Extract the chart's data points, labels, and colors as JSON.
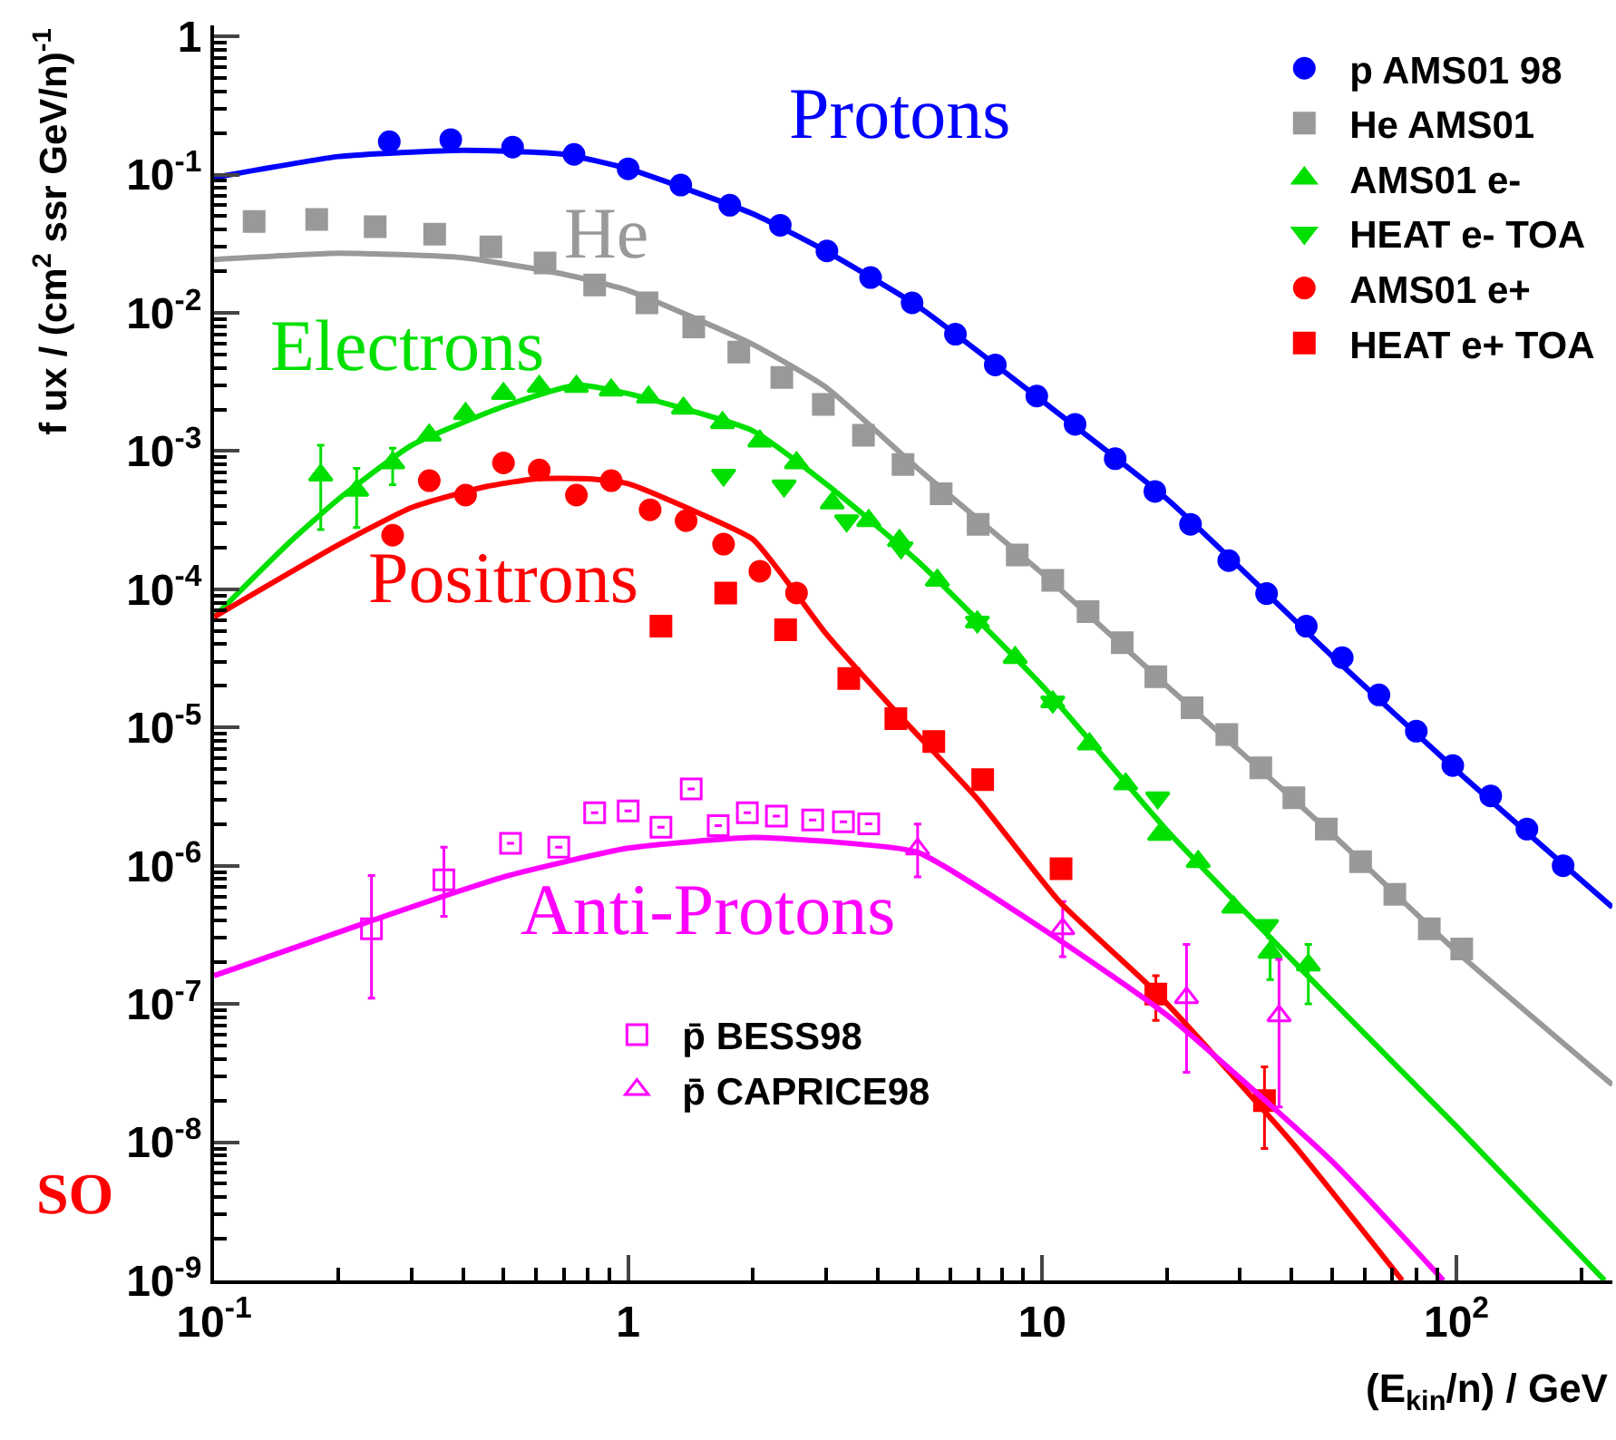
{
  "chart_data": {
    "type": "scatter",
    "log": "xy",
    "legend": "top right",
    "xlabel": "(E$_{kin}$/n) / GeV",
    "ylabel": "f ux / (cm$^{2}$ ssr GeV/n)$^{-1}$",
    "annotations": [
      "SO"
    ],
    "xlim": [
      0.1,
      238
    ],
    "ylim": [
      1e-09,
      1.2
    ],
    "xticks": [
      {
        "value": 0.1,
        "label": "10$^{-1}$"
      },
      1,
      10,
      {
        "value": 100,
        "label": "10$^{2}$"
      }
    ],
    "yticks": [
      {
        "value": 1e-09,
        "label": "10$^{-9}$"
      },
      {
        "value": 1e-08,
        "label": "10$^{-8}$"
      },
      {
        "value": 1e-07,
        "label": "10$^{-7}$"
      },
      {
        "value": 1e-06,
        "label": "10$^{-6}$"
      },
      {
        "value": 1e-05,
        "label": "10$^{-5}$"
      },
      {
        "value": 0.0001,
        "label": "10$^{-4}$"
      },
      {
        "value": 0.001,
        "label": "10$^{-3}$"
      },
      {
        "value": 0.01,
        "label": "10$^{-2}$"
      },
      {
        "value": 0.1,
        "label": "10$^{-1}$"
      },
      1
    ],
    "series": [
      {
        "name": "p AMS01 98",
        "marker": "circle",
        "color": "#0000ff",
        "x": [
          0.265,
          0.373,
          0.526,
          0.74,
          1.0,
          1.34,
          1.76,
          2.33,
          3.02,
          3.85,
          4.85,
          6.17,
          7.7,
          9.7,
          12.0,
          15.0,
          18.7,
          22.8,
          28.2,
          34.8,
          43.4,
          53,
          65,
          80,
          98,
          121,
          148,
          181
        ],
        "values": [
          0.173,
          0.179,
          0.158,
          0.14,
          0.11,
          0.084,
          0.06,
          0.043,
          0.028,
          0.018,
          0.0118,
          0.007,
          0.0042,
          0.0025,
          0.00156,
          0.00088,
          0.00051,
          0.000295,
          0.000161,
          9.3e-05,
          5.4e-05,
          3.2e-05,
          1.72e-05,
          9.4e-06,
          5.3e-06,
          3.2e-06,
          1.84e-06,
          1e-06
        ]
      },
      {
        "name": "He AMS01",
        "marker": "square",
        "color": "#999999",
        "x": [
          0.125,
          0.177,
          0.245,
          0.341,
          0.466,
          0.63,
          0.83,
          1.11,
          1.44,
          1.85,
          2.35,
          2.96,
          3.7,
          4.61,
          5.7,
          7.0,
          8.7,
          10.6,
          12.9,
          15.6,
          18.8,
          23.0,
          27.9,
          33.7,
          40.5,
          48.5,
          58.7,
          71,
          86,
          103
        ],
        "values": [
          0.0458,
          0.0473,
          0.0419,
          0.0371,
          0.03,
          0.0229,
          0.0159,
          0.0118,
          0.0079,
          0.0052,
          0.0034,
          0.00217,
          0.0013,
          0.0008,
          0.00049,
          0.000295,
          0.000177,
          0.000116,
          6.9e-05,
          4.1e-05,
          2.33e-05,
          1.39e-05,
          8.9e-06,
          5.1e-06,
          3.1e-06,
          1.84e-06,
          1.07e-06,
          6.2e-07,
          3.5e-07,
          2.5e-07
        ]
      },
      {
        "name": "AMS01 e-",
        "marker": "triangle",
        "color": "#00e000",
        "x": [
          0.181,
          0.221,
          0.27,
          0.331,
          0.405,
          0.5,
          0.61,
          0.75,
          0.91,
          1.12,
          1.36,
          1.69,
          2.08,
          2.55,
          3.11,
          3.81,
          4.52,
          5.58,
          6.97,
          8.6,
          10.6,
          13.0,
          15.9,
          19.2,
          23.8,
          29.0,
          35.5,
          43.9
        ],
        "values": [
          0.00067,
          0.00052,
          0.00082,
          0.0013,
          0.00186,
          0.0026,
          0.00293,
          0.00293,
          0.00276,
          0.00245,
          0.00204,
          0.0016,
          0.00118,
          0.00082,
          0.00042,
          0.000313,
          0.000225,
          0.000116,
          5.8e-05,
          3.2e-05,
          1.53e-05,
          7.6e-06,
          3.9e-06,
          1.68e-06,
          1.07e-06,
          5e-07,
          2.36e-07,
          1.91e-07
        ],
        "errors": [
          [
            0.00027,
            0.0011
          ],
          [
            0.00028,
            0.00075
          ],
          [
            0.00057,
            0.00105
          ],
          null,
          null,
          null,
          null,
          null,
          null,
          null,
          null,
          null,
          null,
          null,
          null,
          null,
          null,
          null,
          null,
          null,
          null,
          null,
          null,
          null,
          null,
          null,
          [
            1.5e-07,
            3e-07
          ],
          [
            1e-07,
            2.7e-07
          ]
        ]
      },
      {
        "name": "HEAT e- TOA",
        "marker": "triangle-down",
        "color": "#00e000",
        "x": [
          1.7,
          2.38,
          3.37,
          4.56,
          6.97,
          10.6,
          19.0,
          34.8
        ],
        "values": [
          0.00067,
          0.00056,
          0.000313,
          0.0002,
          5.8e-05,
          1.53e-05,
          3.1e-06,
          3.7e-07
        ]
      },
      {
        "name": "AMS01 e+",
        "marker": "circle",
        "color": "#ff0000",
        "x": [
          0.27,
          0.331,
          0.405,
          0.5,
          0.61,
          0.75,
          0.91,
          1.13,
          1.38,
          1.7,
          2.08,
          2.55
        ],
        "values": [
          0.000246,
          0.00061,
          0.00048,
          0.00082,
          0.00073,
          0.00048,
          0.00061,
          0.000376,
          0.000313,
          0.000212,
          0.000135,
          9.4e-05
        ]
      },
      {
        "name": "HEAT e+ TOA",
        "marker": "square",
        "color": "#ff0000",
        "x": [
          1.2,
          1.72,
          2.4,
          3.41,
          4.43,
          5.47,
          7.18,
          11.1,
          18.8,
          34.4
        ],
        "values": [
          5.4e-05,
          9.4e-05,
          5.1e-05,
          2.26e-05,
          1.16e-05,
          7.9e-06,
          4.2e-06,
          9.5e-07,
          1.18e-07,
          2e-08
        ],
        "errors": [
          null,
          null,
          null,
          null,
          null,
          null,
          null,
          null,
          [
            7.6e-08,
            1.6e-07
          ],
          [
            9e-09,
            3.5e-08
          ]
        ]
      },
      {
        "name": "p̄ BESS98",
        "marker": "square-open",
        "color": "#ff00ff",
        "x": [
          0.24,
          0.359,
          0.52,
          0.68,
          0.83,
          1.0,
          1.2,
          1.42,
          1.65,
          1.94,
          2.28,
          2.79,
          3.31,
          3.81
        ],
        "values": [
          3.5e-07,
          7.9e-07,
          1.45e-06,
          1.36e-06,
          2.42e-06,
          2.49e-06,
          1.9e-06,
          3.6e-06,
          1.95e-06,
          2.42e-06,
          2.28e-06,
          2.14e-06,
          2.08e-06,
          2.01e-06
        ],
        "errors": [
          [
            1.1e-07,
            8.5e-07
          ],
          [
            4.3e-07,
            1.36e-06
          ],
          null,
          null,
          null,
          null,
          null,
          null,
          null,
          null,
          null,
          null,
          null,
          null
        ]
      },
      {
        "name": "p̄ CAPRICE98",
        "marker": "triangle-open",
        "color": "#ff00ff",
        "x": [
          5.0,
          11.2,
          22.3,
          37.3
        ],
        "values": [
          1.32e-06,
          3.5e-07,
          1.11e-07,
          8.2e-08
        ],
        "errors": [
          [
            8.3e-07,
            2e-06
          ],
          [
            2.2e-07,
            5.5e-07
          ],
          [
            3.2e-08,
            2.7e-07
          ],
          [
            1.8e-08,
            2.1e-07
          ]
        ]
      },
      {
        "name": "Protons",
        "type": "line",
        "marker": "none",
        "color": "#0000ff",
        "x": [
          0.1,
          0.2,
          0.4,
          0.7,
          1,
          2,
          3,
          5,
          10,
          20,
          50,
          100,
          238
        ],
        "values": [
          0.095,
          0.135,
          0.15,
          0.14,
          0.11,
          0.052,
          0.028,
          0.0112,
          0.0023,
          0.00045,
          3.3e-05,
          4.9e-06,
          5e-07
        ]
      },
      {
        "name": "He",
        "type": "line",
        "marker": "none",
        "color": "#999999",
        "x": [
          0.1,
          0.2,
          0.4,
          0.7,
          1,
          2,
          3,
          5,
          10,
          20,
          50,
          100,
          238
        ],
        "values": [
          0.0243,
          0.027,
          0.025,
          0.019,
          0.0145,
          0.0059,
          0.0029,
          0.00075,
          0.00013,
          2e-05,
          1.7e-06,
          2.4e-07,
          2.6e-08
        ]
      },
      {
        "name": "Electrons",
        "type": "line",
        "marker": "none",
        "color": "#00e000",
        "x": [
          0.1,
          0.15,
          0.2,
          0.3,
          0.5,
          0.75,
          1,
          2,
          3,
          5,
          10,
          20,
          50,
          100,
          228
        ],
        "values": [
          6.3e-05,
          0.00021,
          0.00045,
          0.0011,
          0.0021,
          0.003,
          0.0026,
          0.0014,
          0.00058,
          0.00016,
          2e-05,
          1.8e-06,
          1.06e-07,
          1.3e-08,
          1e-09
        ]
      },
      {
        "name": "Positrons",
        "type": "line",
        "marker": "none",
        "color": "#ff0000",
        "x": [
          0.1,
          0.2,
          0.3,
          0.45,
          0.6,
          0.8,
          1,
          1.5,
          2,
          2.5,
          3,
          4.43,
          7,
          11,
          19,
          40,
          74
        ],
        "values": [
          6.3e-05,
          0.00021,
          0.00039,
          0.00055,
          0.00063,
          0.00063,
          0.00058,
          0.00035,
          0.00023,
          0.0001,
          4.8e-05,
          1.3e-05,
          3e-06,
          5.5e-07,
          1.18e-07,
          1e-08,
          1e-09
        ]
      },
      {
        "name": "Anti-Protons",
        "type": "line",
        "marker": "none",
        "color": "#ff00ff",
        "x": [
          0.1,
          0.24,
          0.5,
          1,
          2,
          3,
          5,
          11,
          20,
          50,
          93
        ],
        "values": [
          1.6e-07,
          4e-07,
          8.3e-07,
          1.34e-06,
          1.6e-06,
          1.5e-06,
          1.25e-06,
          2.9e-07,
          8.3e-08,
          7.3e-09,
          1e-09
        ]
      }
    ]
  }
}
